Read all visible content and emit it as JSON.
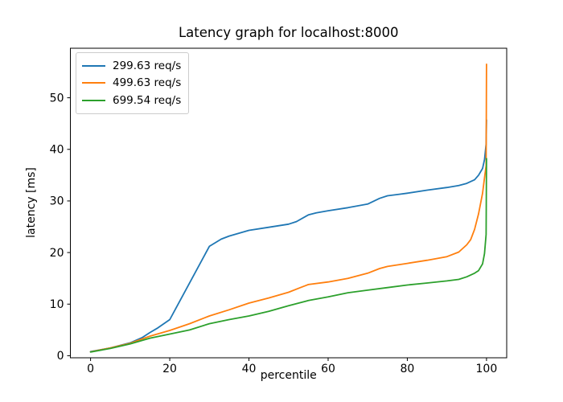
{
  "chart_data": {
    "type": "line",
    "title": "Latency graph for localhost:8000",
    "xlabel": "percentile",
    "ylabel": "latency [ms]",
    "xlim": [
      -5.1,
      105.1
    ],
    "ylim": [
      -0.4,
      59.6
    ],
    "xticks": [
      0,
      20,
      40,
      60,
      80,
      100
    ],
    "yticks": [
      0,
      10,
      20,
      30,
      40,
      50
    ],
    "grid": false,
    "legend_position": "upper-left",
    "axis_color": "#000000",
    "series": [
      {
        "name": "299.63 req/s",
        "color": "#1f77b4",
        "points": [
          [
            0,
            0.8
          ],
          [
            5,
            1.5
          ],
          [
            10,
            2.5
          ],
          [
            13,
            3.5
          ],
          [
            15,
            4.5
          ],
          [
            17,
            5.4
          ],
          [
            20,
            7.0
          ],
          [
            30,
            21.2
          ],
          [
            33,
            22.6
          ],
          [
            35,
            23.2
          ],
          [
            40,
            24.3
          ],
          [
            45,
            24.9
          ],
          [
            50,
            25.5
          ],
          [
            52,
            26.0
          ],
          [
            55,
            27.3
          ],
          [
            57,
            27.7
          ],
          [
            60,
            28.1
          ],
          [
            65,
            28.7
          ],
          [
            70,
            29.4
          ],
          [
            73,
            30.5
          ],
          [
            75,
            31.0
          ],
          [
            78,
            31.3
          ],
          [
            80,
            31.5
          ],
          [
            85,
            32.1
          ],
          [
            90,
            32.6
          ],
          [
            93,
            33.0
          ],
          [
            95,
            33.4
          ],
          [
            97,
            34.1
          ],
          [
            98,
            35.0
          ],
          [
            99,
            36.3
          ],
          [
            99.5,
            38.0
          ],
          [
            99.9,
            41.0
          ],
          [
            100,
            45.7
          ]
        ]
      },
      {
        "name": "499.63 req/s",
        "color": "#ff7f0e",
        "points": [
          [
            0,
            0.75
          ],
          [
            5,
            1.5
          ],
          [
            10,
            2.4
          ],
          [
            15,
            3.8
          ],
          [
            20,
            4.9
          ],
          [
            25,
            6.2
          ],
          [
            30,
            7.7
          ],
          [
            35,
            8.9
          ],
          [
            40,
            10.2
          ],
          [
            45,
            11.2
          ],
          [
            50,
            12.3
          ],
          [
            53,
            13.2
          ],
          [
            55,
            13.8
          ],
          [
            60,
            14.3
          ],
          [
            65,
            15.0
          ],
          [
            70,
            16.0
          ],
          [
            73,
            16.9
          ],
          [
            75,
            17.3
          ],
          [
            80,
            17.9
          ],
          [
            85,
            18.5
          ],
          [
            90,
            19.2
          ],
          [
            93,
            20.1
          ],
          [
            95,
            21.5
          ],
          [
            96,
            22.5
          ],
          [
            97,
            24.5
          ],
          [
            98,
            27.5
          ],
          [
            99,
            31.5
          ],
          [
            99.5,
            34.5
          ],
          [
            99.9,
            36.8
          ],
          [
            100,
            56.5
          ]
        ]
      },
      {
        "name": "699.54 req/s",
        "color": "#2ca02c",
        "points": [
          [
            0,
            0.7
          ],
          [
            5,
            1.4
          ],
          [
            10,
            2.3
          ],
          [
            15,
            3.4
          ],
          [
            20,
            4.2
          ],
          [
            25,
            5.0
          ],
          [
            30,
            6.2
          ],
          [
            35,
            7.0
          ],
          [
            40,
            7.7
          ],
          [
            45,
            8.6
          ],
          [
            50,
            9.7
          ],
          [
            55,
            10.7
          ],
          [
            60,
            11.4
          ],
          [
            65,
            12.2
          ],
          [
            70,
            12.7
          ],
          [
            75,
            13.2
          ],
          [
            80,
            13.7
          ],
          [
            85,
            14.1
          ],
          [
            90,
            14.5
          ],
          [
            93,
            14.8
          ],
          [
            95,
            15.3
          ],
          [
            97,
            16.0
          ],
          [
            98,
            16.5
          ],
          [
            99,
            17.8
          ],
          [
            99.5,
            19.8
          ],
          [
            99.9,
            23.5
          ],
          [
            100,
            38.2
          ]
        ]
      }
    ]
  }
}
